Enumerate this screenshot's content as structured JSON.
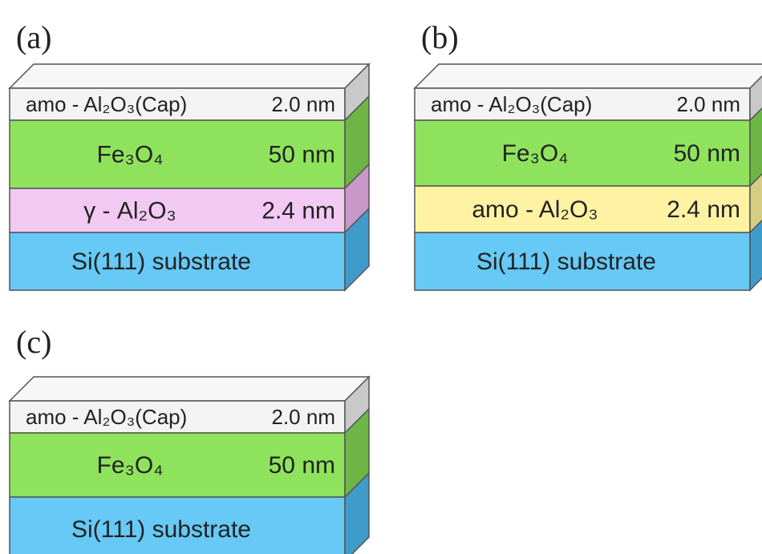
{
  "panels": [
    {
      "label": "(a)",
      "layers": [
        {
          "material": "amo - Al₂O₃(Cap)",
          "thickness": "2.0 nm"
        },
        {
          "material": "Fe₃O₄",
          "thickness": "50 nm"
        },
        {
          "material": "γ - Al₂O₃",
          "thickness": "2.4 nm"
        },
        {
          "material": "Si(111) substrate"
        }
      ]
    },
    {
      "label": "(b)",
      "layers": [
        {
          "material": "amo - Al₂O₃(Cap)",
          "thickness": "2.0 nm"
        },
        {
          "material": "Fe₃O₄",
          "thickness": "50 nm"
        },
        {
          "material": "amo - Al₂O₃",
          "thickness": "2.4 nm"
        },
        {
          "material": "Si(111) substrate"
        }
      ]
    },
    {
      "label": "(c)",
      "layers": [
        {
          "material": "amo - Al₂O₃(Cap)",
          "thickness": "2.0 nm"
        },
        {
          "material": "Fe₃O₄",
          "thickness": "50 nm"
        },
        {
          "material": "Si(111) substrate"
        }
      ]
    }
  ]
}
